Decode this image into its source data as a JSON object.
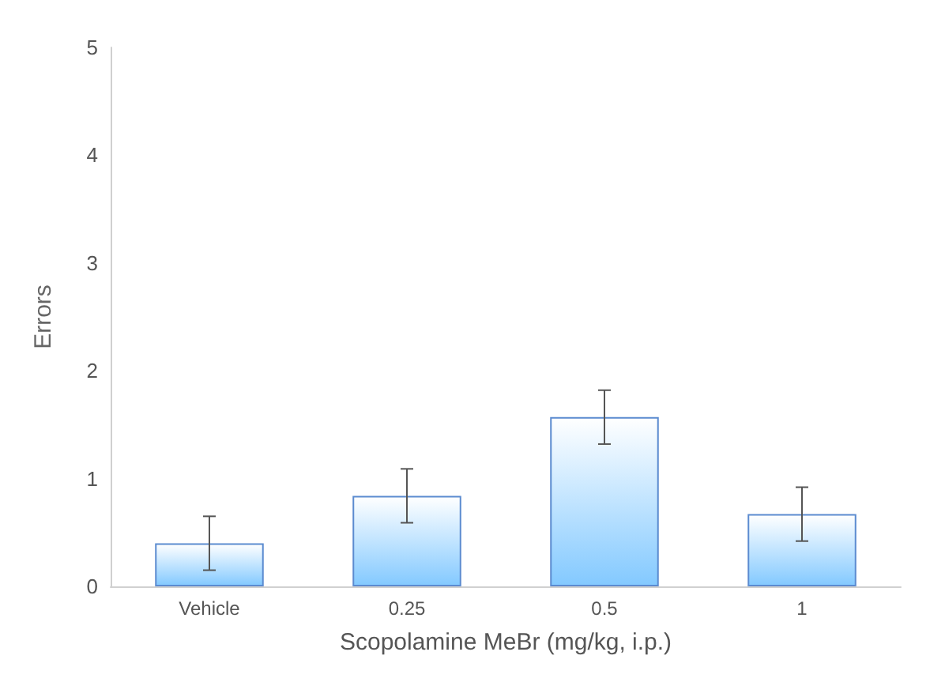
{
  "chart_data": {
    "type": "bar",
    "xlabel": "Scopolamine MeBr (mg/kg, i.p.)",
    "ylabel": "Errors",
    "categories": [
      "Vehicle",
      "0.25",
      "0.5",
      "1"
    ],
    "values": [
      0.4,
      0.84,
      1.57,
      0.67
    ],
    "errors": [
      0.25,
      0.25,
      0.25,
      0.25
    ],
    "color": "#5b8bd0",
    "ylim": [
      0,
      5
    ],
    "yticks": [
      0,
      1,
      2,
      3,
      4,
      5
    ],
    "grid": false
  }
}
